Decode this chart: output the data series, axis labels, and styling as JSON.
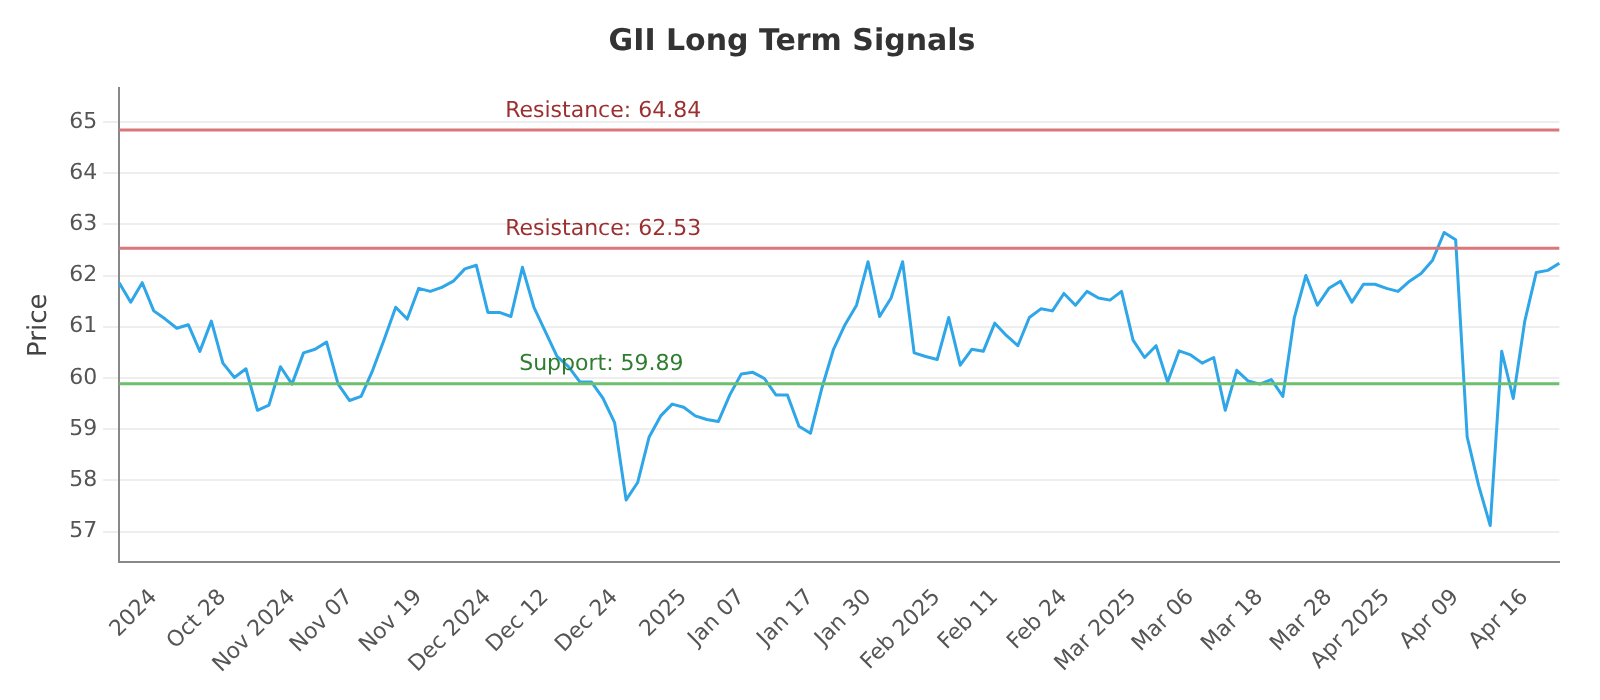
{
  "chart_data": {
    "type": "line",
    "title": "GII Long Term Signals",
    "ylabel": "Price",
    "categories": [
      null,
      null,
      null,
      "2024",
      null,
      null,
      null,
      null,
      null,
      "Oct 28",
      null,
      null,
      null,
      null,
      null,
      "Nov 2024",
      null,
      null,
      null,
      null,
      "Nov 07",
      null,
      null,
      null,
      null,
      null,
      "Nov 19",
      null,
      null,
      null,
      null,
      null,
      "Dec 2024",
      null,
      null,
      null,
      null,
      "Dec 12",
      null,
      null,
      null,
      null,
      null,
      "Dec 24",
      null,
      null,
      null,
      null,
      null,
      "2025",
      null,
      null,
      null,
      null,
      "Jan 07",
      null,
      null,
      null,
      null,
      null,
      "Jan 17",
      null,
      null,
      null,
      null,
      "Jan 30",
      null,
      null,
      null,
      null,
      null,
      "Feb 2025",
      null,
      null,
      null,
      null,
      "Feb 11",
      null,
      null,
      null,
      null,
      null,
      "Feb 24",
      null,
      null,
      null,
      null,
      null,
      "Mar 2025",
      null,
      null,
      null,
      null,
      "Mar 06",
      null,
      null,
      null,
      null,
      null,
      "Mar 18",
      null,
      null,
      null,
      null,
      null,
      "Mar 28",
      null,
      null,
      null,
      null,
      "Apr 2025",
      null,
      null,
      null,
      null,
      null,
      "Apr 09",
      null,
      null,
      null,
      null,
      null,
      "Apr 16",
      null,
      null,
      null
    ],
    "series": [
      {
        "color": "#2ea6e8",
        "values": [
          61.86,
          61.48,
          61.86,
          61.31,
          61.15,
          60.97,
          61.04,
          60.52,
          61.11,
          60.29,
          60.01,
          60.18,
          59.37,
          59.47,
          60.22,
          59.88,
          60.49,
          60.56,
          60.7,
          59.88,
          59.56,
          59.64,
          60.15,
          60.75,
          61.38,
          61.15,
          61.75,
          61.69,
          61.77,
          61.89,
          62.13,
          62.2,
          61.28,
          61.28,
          61.2,
          62.16,
          61.38,
          60.9,
          60.42,
          60.22,
          59.92,
          59.92,
          59.6,
          59.13,
          57.62,
          57.96,
          58.85,
          59.26,
          59.49,
          59.43,
          59.26,
          59.19,
          59.15,
          59.67,
          60.08,
          60.11,
          59.99,
          59.67,
          59.67,
          59.06,
          58.92,
          59.81,
          60.56,
          61.04,
          61.42,
          62.27,
          61.2,
          61.56,
          62.27,
          60.49,
          60.42,
          60.36,
          61.18,
          60.25,
          60.56,
          60.52,
          61.07,
          60.83,
          60.63,
          61.18,
          61.35,
          61.31,
          61.65,
          61.42,
          61.69,
          61.56,
          61.52,
          61.69,
          60.74,
          60.4,
          60.63,
          59.92,
          60.53,
          60.45,
          60.29,
          60.4,
          59.37,
          60.15,
          59.94,
          59.88,
          59.97,
          59.64,
          61.18,
          62.0,
          61.42,
          61.75,
          61.89,
          61.48,
          61.83,
          61.83,
          61.75,
          61.69,
          61.89,
          62.04,
          62.3,
          62.84,
          62.7,
          58.85,
          57.9,
          57.12,
          60.52,
          59.6,
          61.11,
          62.06,
          62.1,
          62.24
        ]
      }
    ],
    "ylim": [
      56.4,
      65.66
    ],
    "yticks": [
      57,
      58,
      59,
      60,
      61,
      62,
      63,
      64,
      65
    ],
    "grid": "y",
    "legend": false,
    "marker": "none",
    "line_style": "solid",
    "ref_lines": [
      {
        "axis": "y",
        "value": 64.84,
        "label": "Resistance: 64.84",
        "color": "#d9777a"
      },
      {
        "axis": "y",
        "value": 62.53,
        "label": "Resistance: 62.53",
        "color": "#d9777a"
      },
      {
        "axis": "y",
        "value": 59.89,
        "label": "Support: 59.89",
        "color": "#6cbf6c"
      }
    ]
  }
}
